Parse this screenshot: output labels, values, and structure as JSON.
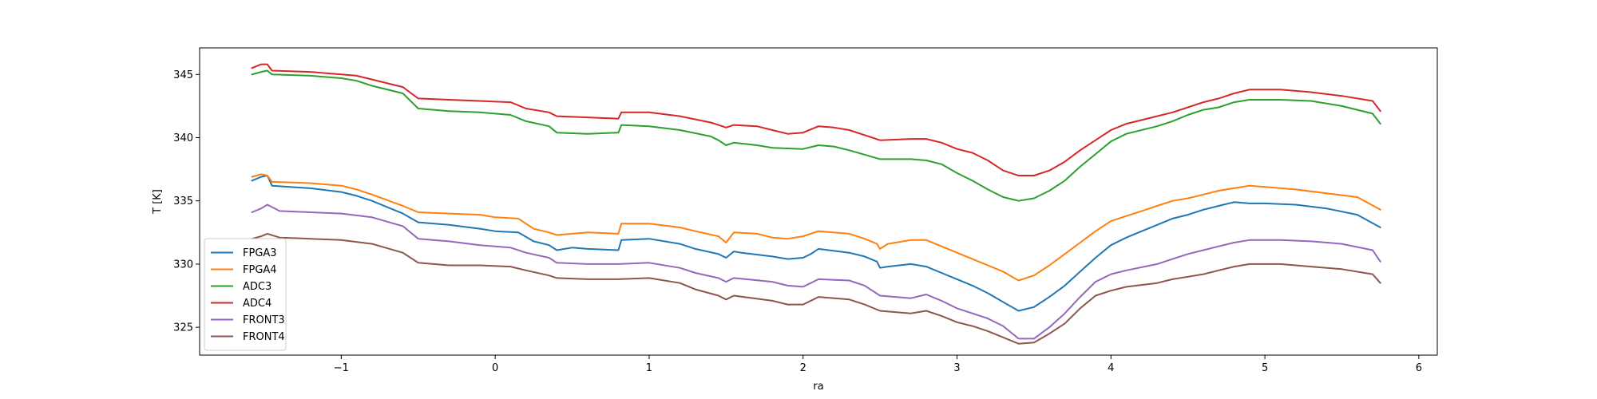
{
  "chart_data": {
    "type": "line",
    "title": "",
    "xlabel": "ra",
    "ylabel": "T [K]",
    "xlim": [
      -1.92,
      6.12
    ],
    "ylim": [
      322.8,
      347.1
    ],
    "xticks": [
      -1,
      0,
      1,
      2,
      3,
      4,
      5,
      6
    ],
    "xtick_labels": [
      "−1",
      "0",
      "1",
      "2",
      "3",
      "4",
      "5",
      "6"
    ],
    "yticks": [
      325,
      330,
      335,
      340,
      345
    ],
    "ytick_labels": [
      "325",
      "330",
      "335",
      "340",
      "345"
    ],
    "grid": false,
    "legend_position": "lower-left",
    "series": [
      {
        "name": "FPGA3",
        "color": "#1f77b4",
        "x": [
          -1.58,
          -1.52,
          -1.48,
          -1.45,
          -1.2,
          -1.0,
          -0.9,
          -0.8,
          -0.6,
          -0.5,
          -0.3,
          -0.1,
          0.0,
          0.15,
          0.25,
          0.35,
          0.4,
          0.5,
          0.6,
          0.8,
          0.82,
          1.0,
          1.2,
          1.3,
          1.45,
          1.5,
          1.55,
          1.6,
          1.8,
          1.9,
          2.0,
          2.05,
          2.1,
          2.3,
          2.4,
          2.48,
          2.5,
          2.55,
          2.7,
          2.8,
          2.9,
          3.0,
          3.1,
          3.2,
          3.3,
          3.4,
          3.5,
          3.6,
          3.7,
          3.8,
          3.9,
          4.0,
          4.1,
          4.2,
          4.3,
          4.4,
          4.5,
          4.6,
          4.7,
          4.8,
          4.9,
          5.0,
          5.2,
          5.4,
          5.6,
          5.75
        ],
        "values": [
          336.6,
          336.9,
          337.0,
          336.2,
          336.0,
          335.7,
          335.4,
          335.0,
          334.0,
          333.3,
          333.1,
          332.8,
          332.6,
          332.5,
          331.8,
          331.5,
          331.1,
          331.3,
          331.2,
          331.1,
          331.9,
          332.0,
          331.6,
          331.2,
          330.8,
          330.5,
          331.0,
          330.9,
          330.6,
          330.4,
          330.5,
          330.8,
          331.2,
          330.9,
          330.6,
          330.2,
          329.7,
          329.8,
          330.0,
          329.8,
          329.3,
          328.8,
          328.3,
          327.7,
          327.0,
          326.3,
          326.6,
          327.4,
          328.3,
          329.4,
          330.5,
          331.5,
          332.1,
          332.6,
          333.1,
          333.6,
          333.9,
          334.3,
          334.6,
          334.9,
          334.8,
          334.8,
          334.7,
          334.4,
          333.9,
          332.9
        ]
      },
      {
        "name": "FPGA4",
        "color": "#ff7f0e",
        "x": [
          -1.58,
          -1.52,
          -1.48,
          -1.45,
          -1.2,
          -1.0,
          -0.9,
          -0.8,
          -0.6,
          -0.5,
          -0.3,
          -0.1,
          0.0,
          0.15,
          0.25,
          0.35,
          0.4,
          0.6,
          0.8,
          0.82,
          1.0,
          1.2,
          1.3,
          1.45,
          1.5,
          1.55,
          1.7,
          1.8,
          1.9,
          2.0,
          2.1,
          2.3,
          2.4,
          2.48,
          2.5,
          2.55,
          2.7,
          2.8,
          2.9,
          3.0,
          3.1,
          3.2,
          3.3,
          3.4,
          3.5,
          3.6,
          3.7,
          3.8,
          3.9,
          4.0,
          4.1,
          4.2,
          4.3,
          4.4,
          4.5,
          4.6,
          4.7,
          4.8,
          4.9,
          5.0,
          5.2,
          5.4,
          5.6,
          5.75
        ],
        "values": [
          336.9,
          337.1,
          337.0,
          336.5,
          336.4,
          336.2,
          335.9,
          335.5,
          334.6,
          334.1,
          334.0,
          333.9,
          333.7,
          333.6,
          332.8,
          332.5,
          332.3,
          332.5,
          332.4,
          333.2,
          333.2,
          332.9,
          332.6,
          332.2,
          331.7,
          332.5,
          332.4,
          332.1,
          332.0,
          332.2,
          332.6,
          332.4,
          332.0,
          331.6,
          331.2,
          331.6,
          331.9,
          331.9,
          331.4,
          330.9,
          330.4,
          329.9,
          329.4,
          328.7,
          329.1,
          329.9,
          330.8,
          331.7,
          332.6,
          333.4,
          333.8,
          334.2,
          334.6,
          335.0,
          335.2,
          335.5,
          335.8,
          336.0,
          336.2,
          336.1,
          335.9,
          335.6,
          335.3,
          334.3
        ]
      },
      {
        "name": "ADC3",
        "color": "#2ca02c",
        "x": [
          -1.58,
          -1.52,
          -1.48,
          -1.45,
          -1.2,
          -1.0,
          -0.9,
          -0.8,
          -0.6,
          -0.5,
          -0.3,
          -0.1,
          0.1,
          0.2,
          0.35,
          0.4,
          0.6,
          0.8,
          0.82,
          1.0,
          1.2,
          1.4,
          1.45,
          1.5,
          1.55,
          1.7,
          1.8,
          2.0,
          2.1,
          2.2,
          2.3,
          2.5,
          2.7,
          2.8,
          2.9,
          3.0,
          3.1,
          3.2,
          3.3,
          3.4,
          3.5,
          3.6,
          3.7,
          3.8,
          3.9,
          4.0,
          4.1,
          4.3,
          4.4,
          4.5,
          4.6,
          4.7,
          4.8,
          4.9,
          5.1,
          5.3,
          5.5,
          5.7,
          5.75
        ],
        "values": [
          345.0,
          345.2,
          345.3,
          345.0,
          344.9,
          344.7,
          344.5,
          344.1,
          343.5,
          342.3,
          342.1,
          342.0,
          341.8,
          341.3,
          340.9,
          340.4,
          340.3,
          340.4,
          341.0,
          340.9,
          340.6,
          340.1,
          339.8,
          339.4,
          339.6,
          339.4,
          339.2,
          339.1,
          339.4,
          339.3,
          339.0,
          338.3,
          338.3,
          338.2,
          337.9,
          337.2,
          336.6,
          335.9,
          335.3,
          335.0,
          335.2,
          335.8,
          336.6,
          337.7,
          338.7,
          339.7,
          340.3,
          340.9,
          341.3,
          341.8,
          342.2,
          342.4,
          342.8,
          343.0,
          343.0,
          342.9,
          342.5,
          341.9,
          341.1
        ]
      },
      {
        "name": "ADC4",
        "color": "#d62728",
        "x": [
          -1.58,
          -1.52,
          -1.48,
          -1.45,
          -1.2,
          -1.0,
          -0.9,
          -0.8,
          -0.6,
          -0.5,
          -0.3,
          -0.1,
          0.1,
          0.2,
          0.35,
          0.4,
          0.6,
          0.8,
          0.82,
          1.0,
          1.2,
          1.4,
          1.45,
          1.5,
          1.55,
          1.7,
          1.8,
          1.9,
          2.0,
          2.1,
          2.2,
          2.3,
          2.5,
          2.7,
          2.8,
          2.9,
          3.0,
          3.1,
          3.2,
          3.3,
          3.4,
          3.5,
          3.6,
          3.7,
          3.8,
          3.9,
          4.0,
          4.1,
          4.3,
          4.4,
          4.5,
          4.6,
          4.7,
          4.8,
          4.9,
          5.1,
          5.3,
          5.5,
          5.7,
          5.75
        ],
        "values": [
          345.5,
          345.8,
          345.8,
          345.3,
          345.2,
          345.0,
          344.9,
          344.6,
          344.0,
          343.1,
          343.0,
          342.9,
          342.8,
          342.3,
          342.0,
          341.7,
          341.6,
          341.5,
          342.0,
          342.0,
          341.7,
          341.2,
          341.0,
          340.8,
          341.0,
          340.9,
          340.6,
          340.3,
          340.4,
          340.9,
          340.8,
          340.6,
          339.8,
          339.9,
          339.9,
          339.6,
          339.1,
          338.8,
          338.2,
          337.4,
          337.0,
          337.0,
          337.4,
          338.1,
          339.0,
          339.8,
          340.6,
          341.1,
          341.7,
          342.0,
          342.4,
          342.8,
          343.1,
          343.5,
          343.8,
          343.8,
          343.6,
          343.3,
          342.9,
          342.1
        ]
      },
      {
        "name": "FRONT3",
        "color": "#9467bd",
        "x": [
          -1.58,
          -1.52,
          -1.48,
          -1.4,
          -1.2,
          -1.0,
          -0.8,
          -0.6,
          -0.5,
          -0.3,
          -0.1,
          0.1,
          0.2,
          0.35,
          0.4,
          0.6,
          0.8,
          1.0,
          1.2,
          1.3,
          1.45,
          1.5,
          1.55,
          1.8,
          1.9,
          2.0,
          2.05,
          2.1,
          2.3,
          2.4,
          2.5,
          2.7,
          2.8,
          2.9,
          3.0,
          3.1,
          3.2,
          3.3,
          3.4,
          3.5,
          3.6,
          3.7,
          3.8,
          3.9,
          4.0,
          4.1,
          4.3,
          4.4,
          4.5,
          4.6,
          4.7,
          4.8,
          4.9,
          5.1,
          5.3,
          5.5,
          5.7,
          5.75
        ],
        "values": [
          334.1,
          334.4,
          334.7,
          334.2,
          334.1,
          334.0,
          333.7,
          333.0,
          332.0,
          331.8,
          331.5,
          331.3,
          330.9,
          330.5,
          330.1,
          330.0,
          330.0,
          330.1,
          329.7,
          329.3,
          328.9,
          328.6,
          328.9,
          328.6,
          328.3,
          328.2,
          328.5,
          328.8,
          328.7,
          328.3,
          327.5,
          327.3,
          327.6,
          327.1,
          326.5,
          326.1,
          325.7,
          325.1,
          324.1,
          324.1,
          325.0,
          326.1,
          327.4,
          328.6,
          329.2,
          329.5,
          330.0,
          330.4,
          330.8,
          331.1,
          331.4,
          331.7,
          331.9,
          331.9,
          331.8,
          331.6,
          331.1,
          330.2
        ]
      },
      {
        "name": "FRONT4",
        "color": "#8c564b",
        "x": [
          -1.58,
          -1.52,
          -1.48,
          -1.4,
          -1.2,
          -1.0,
          -0.8,
          -0.6,
          -0.5,
          -0.3,
          -0.1,
          0.1,
          0.2,
          0.35,
          0.4,
          0.6,
          0.8,
          1.0,
          1.2,
          1.3,
          1.45,
          1.5,
          1.55,
          1.8,
          1.9,
          2.0,
          2.05,
          2.1,
          2.3,
          2.4,
          2.5,
          2.7,
          2.8,
          2.9,
          3.0,
          3.1,
          3.2,
          3.3,
          3.4,
          3.5,
          3.6,
          3.7,
          3.8,
          3.9,
          4.0,
          4.1,
          4.3,
          4.4,
          4.5,
          4.6,
          4.7,
          4.8,
          4.9,
          5.1,
          5.3,
          5.5,
          5.7,
          5.75
        ],
        "values": [
          332.0,
          332.2,
          332.4,
          332.1,
          332.0,
          331.9,
          331.6,
          330.9,
          330.1,
          329.9,
          329.9,
          329.8,
          329.5,
          329.1,
          328.9,
          328.8,
          328.8,
          328.9,
          328.5,
          328.0,
          327.5,
          327.2,
          327.5,
          327.1,
          326.8,
          326.8,
          327.1,
          327.4,
          327.2,
          326.8,
          326.3,
          326.1,
          326.3,
          325.9,
          325.4,
          325.1,
          324.7,
          324.2,
          323.7,
          323.8,
          324.5,
          325.3,
          326.5,
          327.5,
          327.9,
          328.2,
          328.5,
          328.8,
          329.0,
          329.2,
          329.5,
          329.8,
          330.0,
          330.0,
          329.8,
          329.6,
          329.2,
          328.5
        ]
      }
    ]
  }
}
